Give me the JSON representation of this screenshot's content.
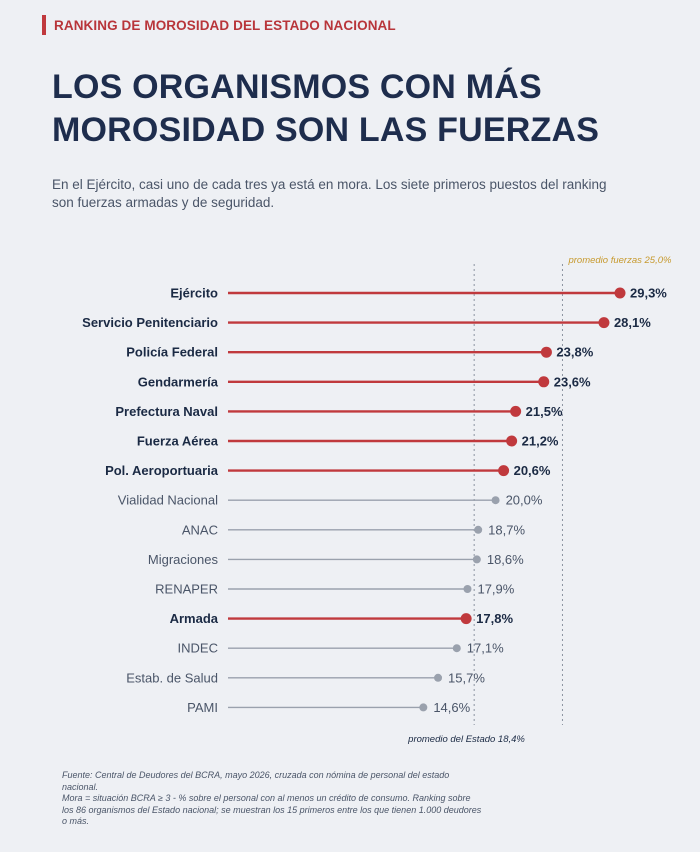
{
  "kicker": "RANKING DE MOROSIDAD DEL ESTADO NACIONAL",
  "title": "LOS ORGANISMOS CON MÁS MOROSIDAD SON LAS FUERZAS",
  "subtitle": "En el Ejército, casi uno de cada tres ya está en mora. Los siete primeros puestos del ranking son fuerzas armadas y de seguridad.",
  "colors": {
    "highlight": "#c0393d",
    "muted": "#9aa1ad",
    "label_dark": "#1b2a44",
    "label_muted": "#4a5568",
    "avg_forces": "#c79a2f"
  },
  "chart_data": {
    "type": "lollipop",
    "unit": "%",
    "categories": [
      "Ejército",
      "Servicio Penitenciario",
      "Policía Federal",
      "Gendarmería",
      "Prefectura Naval",
      "Fuerza Aérea",
      "Pol. Aeroportuaria",
      "Vialidad Nacional",
      "ANAC",
      "Migraciones",
      "RENAPER",
      "Armada",
      "INDEC",
      "Estab. de Salud",
      "PAMI"
    ],
    "values": [
      29.3,
      28.1,
      23.8,
      23.6,
      21.5,
      21.2,
      20.6,
      20.0,
      18.7,
      18.6,
      17.9,
      17.8,
      17.1,
      15.7,
      14.6
    ],
    "value_labels": [
      "29,3%",
      "28,1%",
      "23,8%",
      "23,6%",
      "21,5%",
      "21,2%",
      "20,6%",
      "20,0%",
      "18,7%",
      "18,6%",
      "17,9%",
      "17,8%",
      "17,1%",
      "15,7%",
      "14,6%"
    ],
    "highlight": [
      true,
      true,
      true,
      true,
      true,
      true,
      true,
      false,
      false,
      false,
      false,
      true,
      false,
      false,
      false
    ],
    "reference_lines": [
      {
        "value": 25.0,
        "label": "promedio fuerzas 25,0%",
        "position": "top",
        "color": "#c79a2f"
      },
      {
        "value": 18.4,
        "label": "promedio del Estado 18,4%",
        "position": "bottom",
        "color": "#1b2a44"
      }
    ],
    "xlim": [
      0,
      29.3
    ]
  },
  "footnote": [
    "Fuente: Central de Deudores del BCRA, mayo 2026, cruzada con nómina de personal del estado nacional.",
    "Mora = situación BCRA ≥ 3 - % sobre el personal con al menos un crédito de consumo. Ranking sobre los 86 organismos del Estado nacional; se muestran los 15 primeros entre los que tienen 1.000 deudores o más."
  ]
}
